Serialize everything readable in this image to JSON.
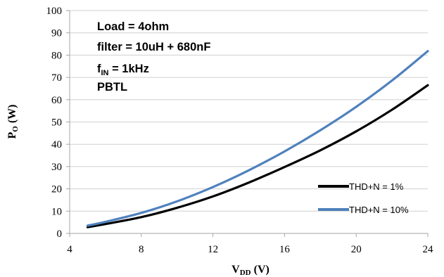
{
  "chart_data": {
    "type": "line",
    "xlabel": {
      "main": "V",
      "sub": "DD",
      "unit": " (V)"
    },
    "ylabel": {
      "main": "P",
      "sub": "O",
      "unit": " (W)"
    },
    "xlim": [
      4,
      24
    ],
    "ylim": [
      0,
      100
    ],
    "xticks": [
      4,
      8,
      12,
      16,
      20,
      24
    ],
    "yticks": [
      0,
      10,
      20,
      30,
      40,
      50,
      60,
      70,
      80,
      90,
      100
    ],
    "grid": true,
    "legend_position": "bottom-right",
    "annotations": [
      {
        "text": "Load = 4ohm"
      },
      {
        "text": "filter = 10uH + 680nF"
      },
      {
        "main": "f",
        "sub": "IN",
        "rest": " = 1kHz"
      },
      {
        "text": "PBTL"
      }
    ],
    "series": [
      {
        "name": "THD+N = 1%",
        "color": "#000000",
        "x": [
          5,
          6,
          8,
          10,
          12,
          14,
          16,
          18,
          20,
          22,
          24
        ],
        "y": [
          2.8,
          4.2,
          7.3,
          11.5,
          16.6,
          22.8,
          29.8,
          37.3,
          45.8,
          55.5,
          66.5
        ]
      },
      {
        "name": "THD+N = 10%",
        "color": "#4f81bd",
        "x": [
          5,
          6,
          8,
          10,
          12,
          14,
          16,
          18,
          20,
          22,
          24
        ],
        "y": [
          3.5,
          5.2,
          9.2,
          14.4,
          20.8,
          28.3,
          36.8,
          46.3,
          56.8,
          68.6,
          81.8
        ]
      }
    ]
  }
}
